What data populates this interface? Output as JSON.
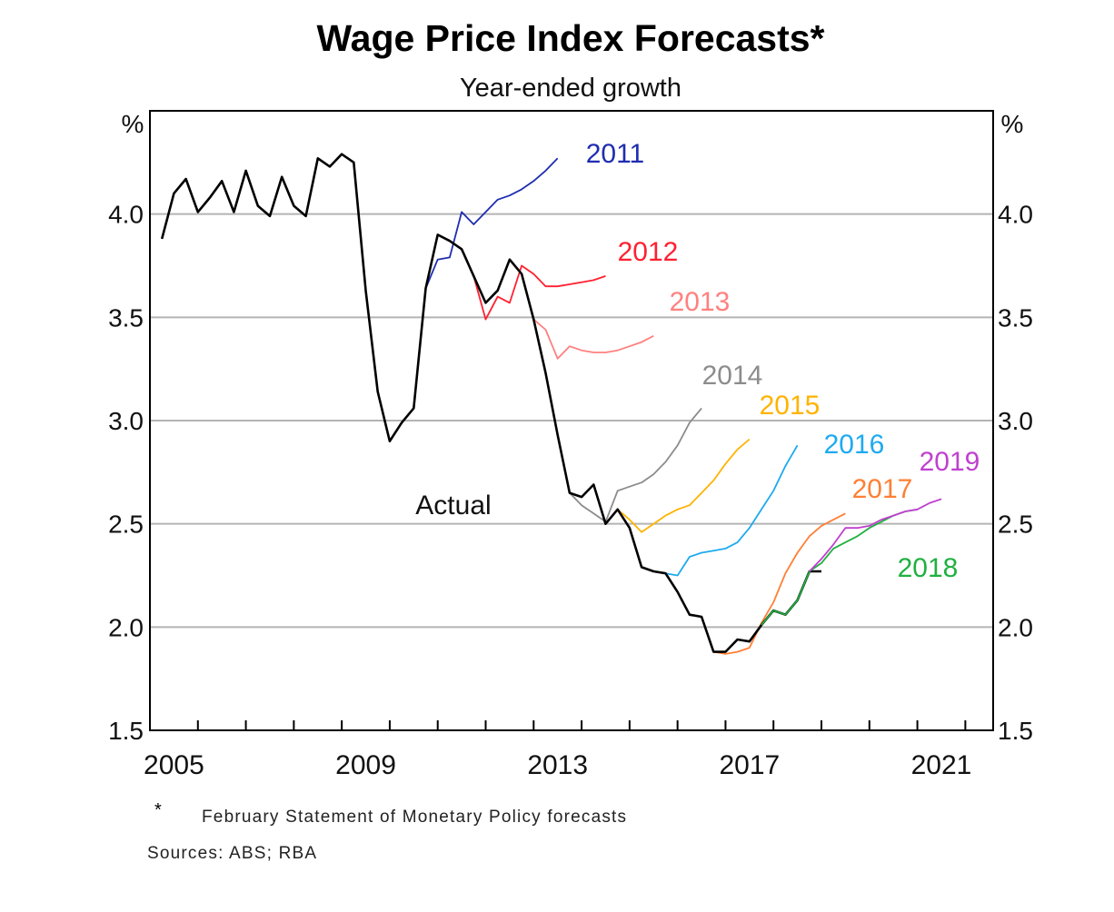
{
  "chart_data": {
    "type": "line",
    "title": "Wage Price Index Forecasts*",
    "subtitle": "Year-ended growth",
    "ylabel_left": "%",
    "ylabel_right": "%",
    "xlim": [
      2005,
      2022.58
    ],
    "ylim": [
      1.5,
      4.5
    ],
    "yticks": [
      "1.5",
      "2.0",
      "2.5",
      "3.0",
      "3.5",
      "4.0"
    ],
    "xtick_labels": [
      "2005",
      "2009",
      "2013",
      "2017",
      "2021"
    ],
    "grid": "horizontal",
    "frequency": "quarterly",
    "series": [
      {
        "name": "Actual",
        "color": "#000000",
        "start": 2005.25,
        "values": [
          3.88,
          4.1,
          4.17,
          4.01,
          4.08,
          4.16,
          4.01,
          4.21,
          4.04,
          3.99,
          4.18,
          4.04,
          3.99,
          4.27,
          4.23,
          4.29,
          4.25,
          3.63,
          3.14,
          2.9,
          2.99,
          3.06,
          3.64,
          3.9,
          3.87,
          3.83,
          3.7,
          3.57,
          3.63,
          3.78,
          3.71,
          3.49,
          3.23,
          2.93,
          2.65,
          2.63,
          2.69,
          2.5,
          2.57,
          2.48,
          2.29,
          2.27,
          2.26,
          2.17,
          2.06,
          2.05,
          1.88,
          1.88,
          1.94,
          1.93,
          2.01,
          2.08,
          2.06,
          2.13,
          2.27,
          2.27
        ]
      },
      {
        "name": "2011",
        "color": "#1f2db0",
        "start": 2010.75,
        "values": [
          3.64,
          3.78,
          3.79,
          4.01,
          3.95,
          4.01,
          4.07,
          4.09,
          4.12,
          4.16,
          4.21,
          4.27
        ]
      },
      {
        "name": "2012",
        "color": "#ff2030",
        "start": 2011.75,
        "values": [
          3.7,
          3.49,
          3.6,
          3.57,
          3.75,
          3.71,
          3.65,
          3.65,
          3.66,
          3.67,
          3.68,
          3.7
        ]
      },
      {
        "name": "2013",
        "color": "#ff8080",
        "start": 2012.75,
        "values": [
          3.71,
          3.49,
          3.44,
          3.3,
          3.36,
          3.34,
          3.33,
          3.33,
          3.34,
          3.36,
          3.38,
          3.41
        ]
      },
      {
        "name": "2014",
        "color": "#8c8c8c",
        "start": 2013.75,
        "values": [
          2.65,
          2.59,
          2.55,
          2.51,
          2.66,
          2.68,
          2.7,
          2.74,
          2.8,
          2.88,
          2.99,
          3.06
        ]
      },
      {
        "name": "2015",
        "color": "#ffb300",
        "start": 2014.75,
        "values": [
          2.57,
          2.52,
          2.46,
          2.5,
          2.54,
          2.57,
          2.59,
          2.65,
          2.71,
          2.79,
          2.86,
          2.91
        ]
      },
      {
        "name": "2016",
        "color": "#1eaaf0",
        "start": 2015.75,
        "values": [
          2.26,
          2.25,
          2.34,
          2.36,
          2.37,
          2.38,
          2.41,
          2.48,
          2.57,
          2.66,
          2.78,
          2.88
        ]
      },
      {
        "name": "2017",
        "color": "#ff7f35",
        "start": 2016.75,
        "values": [
          1.88,
          1.87,
          1.88,
          1.9,
          2.02,
          2.12,
          2.26,
          2.36,
          2.44,
          2.49,
          2.52,
          2.55
        ]
      },
      {
        "name": "2018",
        "color": "#20b040",
        "start": 2017.75,
        "values": [
          2.01,
          2.08,
          2.06,
          2.13,
          2.27,
          2.31,
          2.38,
          2.41,
          2.44,
          2.48,
          2.51,
          2.54,
          2.56,
          2.57
        ]
      },
      {
        "name": "2019",
        "color": "#c040d0",
        "start": 2018.75,
        "values": [
          2.27,
          2.33,
          2.4,
          2.48,
          2.48,
          2.49,
          2.52,
          2.54,
          2.56,
          2.57,
          2.6,
          2.62
        ]
      }
    ]
  },
  "footnote": {
    "marker": "*",
    "text": "February Statement of Monetary Policy forecasts"
  },
  "sources": "Sources: ABS; RBA"
}
